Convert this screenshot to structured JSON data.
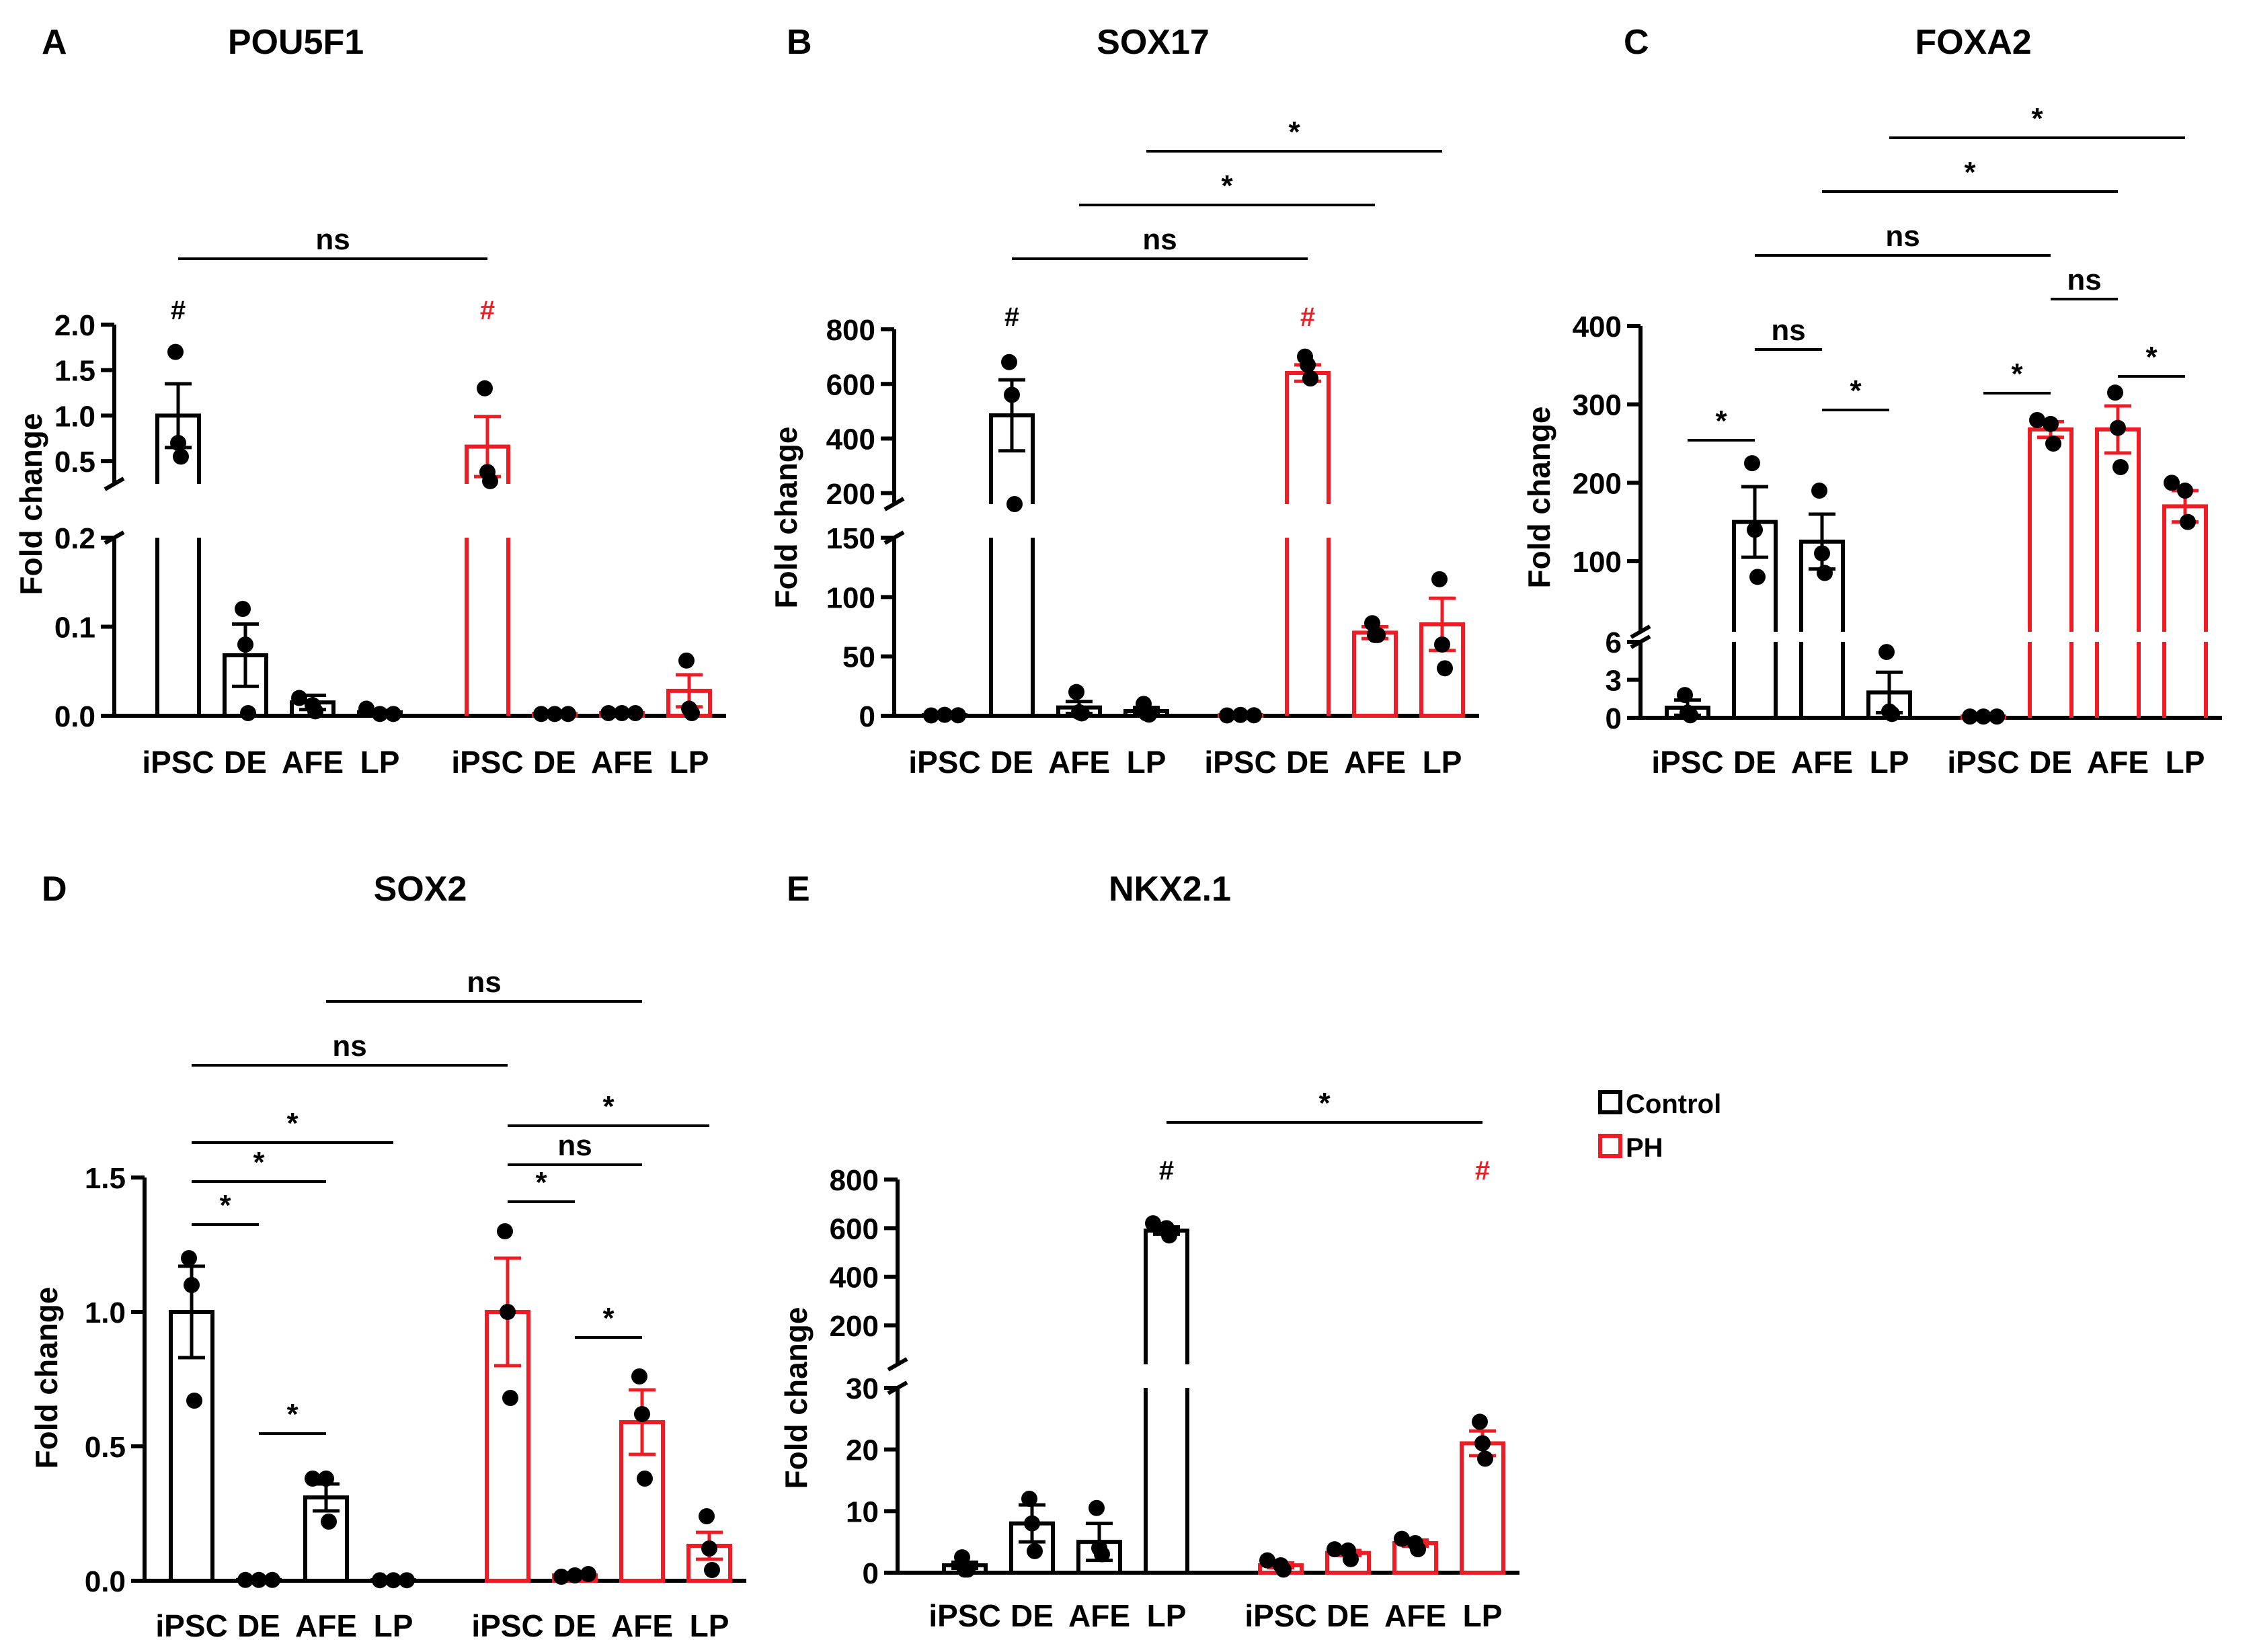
{
  "colors": {
    "control": "#000000",
    "ph": "#ee1c25"
  },
  "legend": {
    "control": "Control",
    "ph": "PH"
  },
  "chart_data": [
    {
      "panel": "A",
      "title": "POU5F1",
      "type": "bar",
      "ylabel": "Fold change",
      "categories": [
        "iPSC",
        "DE",
        "AFE",
        "LP",
        "iPSC",
        "DE",
        "AFE",
        "LP"
      ],
      "groups": [
        "Control",
        "Control",
        "Control",
        "Control",
        "PH",
        "PH",
        "PH",
        "PH"
      ],
      "broken_axis": {
        "lower": [
          0,
          0.2
        ],
        "upper": [
          0.25,
          2.0
        ]
      },
      "yticks_lower": [
        "0.0",
        "0.1",
        "0.2"
      ],
      "yticks_upper": [
        "0.5",
        "1.0",
        "1.5",
        "2.0"
      ],
      "values": [
        1.0,
        0.068,
        0.015,
        0.004,
        0.66,
        0.002,
        0.003,
        0.028
      ],
      "sem": [
        0.35,
        0.035,
        0.008,
        0.002,
        0.33,
        0.001,
        0.001,
        0.018
      ],
      "points": [
        [
          1.7,
          0.7,
          0.55
        ],
        [
          0.12,
          0.08,
          0.003
        ],
        [
          0.02,
          0.012,
          0.005
        ],
        [
          0.008,
          0.002,
          0.002
        ],
        [
          1.3,
          0.38,
          0.28
        ],
        [
          0.002,
          0.002,
          0.002
        ],
        [
          0.003,
          0.003,
          0.003
        ],
        [
          0.062,
          0.008,
          0.003
        ]
      ],
      "annotations": [
        {
          "label": "#",
          "bar": 0,
          "color": "control"
        },
        {
          "label": "#",
          "bar": 4,
          "color": "ph"
        }
      ],
      "brackets": [
        {
          "from": 0,
          "to": 4,
          "label": "ns"
        }
      ]
    },
    {
      "panel": "B",
      "title": "SOX17",
      "type": "bar",
      "ylabel": "Fold change",
      "categories": [
        "iPSC",
        "DE",
        "AFE",
        "LP",
        "iPSC",
        "DE",
        "AFE",
        "LP"
      ],
      "groups": [
        "Control",
        "Control",
        "Control",
        "Control",
        "PH",
        "PH",
        "PH",
        "PH"
      ],
      "broken_axis": {
        "lower": [
          0,
          150
        ],
        "upper": [
          160,
          800
        ]
      },
      "yticks_lower": [
        "0",
        "50",
        "100",
        "150"
      ],
      "yticks_upper": [
        "200",
        "400",
        "600",
        "800"
      ],
      "values": [
        0.5,
        485,
        7,
        4,
        0.5,
        640,
        70,
        77
      ],
      "sem": [
        0.2,
        130,
        5,
        3,
        0.2,
        30,
        5,
        22
      ],
      "points": [
        [
          0.3,
          0.8,
          0.4
        ],
        [
          680,
          560,
          160
        ],
        [
          20,
          3,
          2
        ],
        [
          10,
          2,
          1
        ],
        [
          0.3,
          0.7,
          0.4
        ],
        [
          700,
          670,
          620
        ],
        [
          78,
          68,
          68
        ],
        [
          115,
          60,
          40
        ]
      ],
      "annotations": [
        {
          "label": "#",
          "bar": 1,
          "color": "control"
        },
        {
          "label": "#",
          "bar": 5,
          "color": "ph"
        }
      ],
      "brackets": [
        {
          "from": 1,
          "to": 5,
          "label": "ns"
        },
        {
          "from": 2,
          "to": 6,
          "label": "*"
        },
        {
          "from": 3,
          "to": 7,
          "label": "*"
        }
      ]
    },
    {
      "panel": "C",
      "title": "FOXA2",
      "type": "bar",
      "ylabel": "Fold change",
      "categories": [
        "iPSC",
        "DE",
        "AFE",
        "LP",
        "iPSC",
        "DE",
        "AFE",
        "LP"
      ],
      "groups": [
        "Control",
        "Control",
        "Control",
        "Control",
        "PH",
        "PH",
        "PH",
        "PH"
      ],
      "broken_axis": {
        "lower": [
          0,
          6
        ],
        "upper": [
          10,
          400
        ]
      },
      "yticks_lower": [
        "0",
        "3",
        "6"
      ],
      "yticks_upper": [
        "100",
        "200",
        "300",
        "400"
      ],
      "values": [
        0.8,
        150,
        125,
        2,
        0.1,
        268,
        268,
        170
      ],
      "sem": [
        0.6,
        45,
        35,
        1.6,
        0.05,
        10,
        30,
        20
      ],
      "points": [
        [
          1.8,
          0.4,
          0.2
        ],
        [
          225,
          140,
          80
        ],
        [
          190,
          110,
          85
        ],
        [
          5.2,
          0.5,
          0.3
        ],
        [
          0.1,
          0.1,
          0.1
        ],
        [
          280,
          275,
          250
        ],
        [
          315,
          270,
          220
        ],
        [
          200,
          190,
          150
        ]
      ],
      "annotations": [],
      "brackets": [
        {
          "from": 0,
          "to": 1,
          "label": "*"
        },
        {
          "from": 1,
          "to": 2,
          "label": "ns"
        },
        {
          "from": 2,
          "to": 3,
          "label": "*"
        },
        {
          "from": 4,
          "to": 5,
          "label": "*"
        },
        {
          "from": 5,
          "to": 6,
          "label": "ns"
        },
        {
          "from": 6,
          "to": 7,
          "label": "*"
        },
        {
          "from": 1,
          "to": 5,
          "label": "ns"
        },
        {
          "from": 2,
          "to": 6,
          "label": "*"
        },
        {
          "from": 3,
          "to": 7,
          "label": "*"
        }
      ]
    },
    {
      "panel": "D",
      "title": "SOX2",
      "type": "bar",
      "ylabel": "Fold change",
      "categories": [
        "iPSC",
        "DE",
        "AFE",
        "LP",
        "iPSC",
        "DE",
        "AFE",
        "LP"
      ],
      "groups": [
        "Control",
        "Control",
        "Control",
        "Control",
        "PH",
        "PH",
        "PH",
        "PH"
      ],
      "ylim": [
        0,
        1.5
      ],
      "yticks": [
        "0.0",
        "0.5",
        "1.0",
        "1.5"
      ],
      "values": [
        1.0,
        0.003,
        0.31,
        0.002,
        1.0,
        0.02,
        0.59,
        0.13
      ],
      "sem": [
        0.17,
        0.001,
        0.05,
        0.001,
        0.2,
        0.01,
        0.12,
        0.05
      ],
      "points": [
        [
          1.2,
          1.1,
          0.67
        ],
        [
          0.003,
          0.003,
          0.003
        ],
        [
          0.38,
          0.38,
          0.22
        ],
        [
          0.002,
          0.002,
          0.002
        ],
        [
          1.3,
          1.0,
          0.68
        ],
        [
          0.015,
          0.02,
          0.025
        ],
        [
          0.76,
          0.62,
          0.38
        ],
        [
          0.24,
          0.12,
          0.04
        ]
      ],
      "annotations": [],
      "brackets": [
        {
          "from": 0,
          "to": 1,
          "label": "*"
        },
        {
          "from": 0,
          "to": 2,
          "label": "*"
        },
        {
          "from": 0,
          "to": 3,
          "label": "*"
        },
        {
          "from": 1,
          "to": 2,
          "label": "*"
        },
        {
          "from": 4,
          "to": 5,
          "label": "*"
        },
        {
          "from": 4,
          "to": 6,
          "label": "ns"
        },
        {
          "from": 4,
          "to": 7,
          "label": "*"
        },
        {
          "from": 5,
          "to": 6,
          "label": "*"
        },
        {
          "from": 0,
          "to": 4,
          "label": "ns"
        },
        {
          "from": 2,
          "to": 6,
          "label": "ns"
        }
      ]
    },
    {
      "panel": "E",
      "title": "NKX2.1",
      "type": "bar",
      "ylabel": "Fold change",
      "categories": [
        "iPSC",
        "DE",
        "AFE",
        "LP",
        "iPSC",
        "DE",
        "AFE",
        "LP"
      ],
      "groups": [
        "Control",
        "Control",
        "Control",
        "Control",
        "PH",
        "PH",
        "PH",
        "PH"
      ],
      "broken_axis": {
        "lower": [
          0,
          30
        ],
        "upper": [
          40,
          800
        ]
      },
      "yticks_lower": [
        "0",
        "10",
        "20",
        "30"
      ],
      "yticks_upper": [
        "200",
        "400",
        "600",
        "800"
      ],
      "values": [
        1.2,
        8,
        5,
        590,
        1.2,
        3.2,
        4.8,
        21
      ],
      "sem": [
        0.5,
        3,
        3,
        15,
        0.4,
        0.4,
        0.5,
        2
      ],
      "points": [
        [
          2.5,
          0.5,
          0.5
        ],
        [
          12,
          8,
          3.5
        ],
        [
          10.5,
          4,
          3
        ],
        [
          620,
          600,
          570
        ],
        [
          2,
          1.2,
          0.5
        ],
        [
          3.8,
          3.6,
          2.2
        ],
        [
          5.5,
          4.8,
          3.8
        ],
        [
          24.5,
          21,
          18.5
        ]
      ],
      "annotations": [
        {
          "label": "#",
          "bar": 3,
          "color": "control"
        },
        {
          "label": "#",
          "bar": 7,
          "color": "ph"
        }
      ],
      "brackets": [
        {
          "from": 3,
          "to": 7,
          "label": "*"
        }
      ]
    }
  ]
}
